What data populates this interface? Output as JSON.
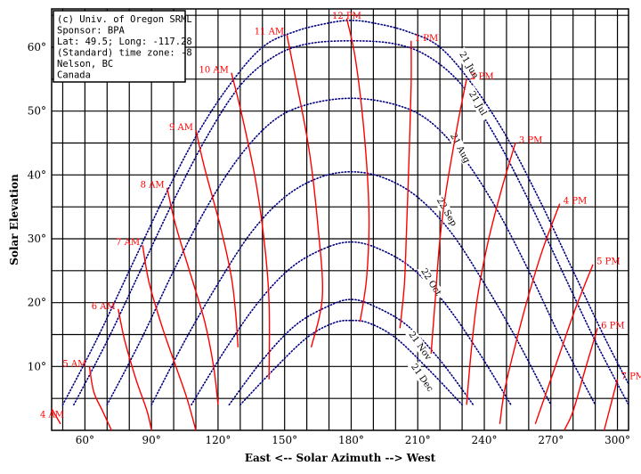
{
  "chart_data": {
    "type": "line",
    "title": "",
    "xlabel": "East <-- Solar Azimuth --> West",
    "ylabel": "Solar Elevation",
    "xlim": [
      45,
      305
    ],
    "ylim": [
      0,
      66
    ],
    "x_ticks": [
      60,
      90,
      120,
      150,
      180,
      210,
      240,
      270,
      300
    ],
    "x_tick_labels": [
      "60°",
      "90°",
      "120°",
      "150°",
      "180°",
      "210°",
      "240°",
      "270°",
      "300°"
    ],
    "y_ticks": [
      10,
      20,
      30,
      40,
      50,
      60
    ],
    "y_tick_labels": [
      "10°",
      "20°",
      "30°",
      "40°",
      "50°",
      "60°"
    ],
    "grid": true,
    "info_box": [
      "(c) Univ. of Oregon SRML",
      "Sponsor: BPA",
      "Lat: 49.5; Long: -117.28",
      "(Standard) time zone: -8",
      "Nelson, BC",
      "Canada"
    ],
    "colors": {
      "hour_lines": "#ff0000",
      "date_arcs": "#000080",
      "grid": "#000000",
      "axis_text": "#000000"
    },
    "date_arcs": [
      {
        "label": "21 Jun",
        "points": [
          [
            50,
            4
          ],
          [
            65,
            14
          ],
          [
            80,
            25
          ],
          [
            95,
            36
          ],
          [
            110,
            46
          ],
          [
            125,
            54
          ],
          [
            140,
            60
          ],
          [
            155,
            62.5
          ],
          [
            170,
            63.8
          ],
          [
            180,
            64.2
          ],
          [
            190,
            63.8
          ],
          [
            205,
            62.5
          ],
          [
            220,
            60
          ],
          [
            235,
            54
          ],
          [
            250,
            46
          ],
          [
            265,
            36
          ],
          [
            280,
            25
          ],
          [
            295,
            14
          ],
          [
            310,
            4
          ]
        ]
      },
      {
        "label": "21 Jul",
        "points": [
          [
            55,
            4
          ],
          [
            70,
            14
          ],
          [
            85,
            25
          ],
          [
            100,
            36
          ],
          [
            115,
            46
          ],
          [
            130,
            54
          ],
          [
            145,
            58.5
          ],
          [
            160,
            60.5
          ],
          [
            180,
            61
          ],
          [
            200,
            60.5
          ],
          [
            215,
            58.5
          ],
          [
            230,
            54
          ],
          [
            245,
            46
          ],
          [
            260,
            36
          ],
          [
            275,
            25
          ],
          [
            290,
            14
          ],
          [
            305,
            4
          ]
        ]
      },
      {
        "label": "21 Aug",
        "points": [
          [
            70,
            4
          ],
          [
            85,
            14
          ],
          [
            100,
            25
          ],
          [
            115,
            35
          ],
          [
            130,
            43
          ],
          [
            145,
            48.5
          ],
          [
            160,
            51
          ],
          [
            180,
            52
          ],
          [
            200,
            51
          ],
          [
            215,
            48.5
          ],
          [
            230,
            43
          ],
          [
            245,
            35
          ],
          [
            260,
            25
          ],
          [
            275,
            14
          ],
          [
            290,
            4
          ]
        ]
      },
      {
        "label": "22 Sep",
        "points": [
          [
            90,
            4
          ],
          [
            105,
            14
          ],
          [
            120,
            23
          ],
          [
            135,
            31
          ],
          [
            150,
            36.5
          ],
          [
            165,
            39.5
          ],
          [
            180,
            40.5
          ],
          [
            195,
            39.5
          ],
          [
            210,
            36.5
          ],
          [
            225,
            31
          ],
          [
            240,
            23
          ],
          [
            255,
            14
          ],
          [
            270,
            4
          ]
        ]
      },
      {
        "label": "22 Oct",
        "points": [
          [
            108,
            4
          ],
          [
            123,
            12.5
          ],
          [
            138,
            20
          ],
          [
            153,
            25.5
          ],
          [
            168,
            28.5
          ],
          [
            180,
            29.5
          ],
          [
            192,
            28.5
          ],
          [
            207,
            25.5
          ],
          [
            222,
            20
          ],
          [
            237,
            12.5
          ],
          [
            252,
            4
          ]
        ]
      },
      {
        "label": "21 Nov",
        "points": [
          [
            125,
            4
          ],
          [
            140,
            11
          ],
          [
            155,
            16.5
          ],
          [
            170,
            19.5
          ],
          [
            180,
            20.5
          ],
          [
            190,
            19.5
          ],
          [
            205,
            16.5
          ],
          [
            220,
            11
          ],
          [
            235,
            4
          ]
        ]
      },
      {
        "label": "21 Dec",
        "points": [
          [
            130,
            4
          ],
          [
            145,
            9.5
          ],
          [
            160,
            14.5
          ],
          [
            172,
            16.8
          ],
          [
            180,
            17.2
          ],
          [
            188,
            16.8
          ],
          [
            200,
            14.5
          ],
          [
            215,
            9.5
          ],
          [
            230,
            4
          ]
        ]
      }
    ],
    "hour_lines": [
      {
        "label": "4 AM",
        "points": [
          [
            44,
            4
          ],
          [
            49,
            1
          ]
        ]
      },
      {
        "label": "5 AM",
        "points": [
          [
            62,
            10
          ],
          [
            64,
            6
          ],
          [
            68,
            3
          ],
          [
            72,
            0
          ]
        ]
      },
      {
        "label": "6 AM",
        "points": [
          [
            75,
            19
          ],
          [
            78,
            14
          ],
          [
            83,
            8
          ],
          [
            88,
            3
          ],
          [
            90,
            0
          ]
        ]
      },
      {
        "label": "7 AM",
        "points": [
          [
            86,
            29
          ],
          [
            89,
            23
          ],
          [
            95,
            16
          ],
          [
            101,
            10
          ],
          [
            106,
            5
          ],
          [
            110,
            0
          ]
        ]
      },
      {
        "label": "8 AM",
        "points": [
          [
            97,
            38
          ],
          [
            101,
            32
          ],
          [
            108,
            24
          ],
          [
            114,
            17
          ],
          [
            118,
            10
          ],
          [
            120,
            4
          ]
        ]
      },
      {
        "label": "9 AM",
        "points": [
          [
            110,
            47
          ],
          [
            114,
            41
          ],
          [
            121,
            32
          ],
          [
            126,
            24
          ],
          [
            128,
            18
          ],
          [
            129,
            13
          ]
        ]
      },
      {
        "label": "10 AM",
        "points": [
          [
            126,
            56
          ],
          [
            131,
            49
          ],
          [
            137,
            39
          ],
          [
            141,
            29
          ],
          [
            143,
            20
          ],
          [
            143,
            8
          ]
        ]
      },
      {
        "label": "11 AM",
        "points": [
          [
            151,
            62
          ],
          [
            155,
            55
          ],
          [
            161,
            44
          ],
          [
            165,
            32
          ],
          [
            167,
            21
          ],
          [
            162,
            13
          ]
        ]
      },
      {
        "label": "12 PM",
        "points": [
          [
            178,
            64.5
          ],
          [
            182,
            58
          ],
          [
            186,
            46
          ],
          [
            188,
            34
          ],
          [
            187,
            24
          ],
          [
            184,
            17
          ]
        ]
      },
      {
        "label": "1 PM",
        "points": [
          [
            207,
            61
          ],
          [
            207,
            54
          ],
          [
            206,
            42
          ],
          [
            205,
            32
          ],
          [
            204,
            23
          ],
          [
            202,
            16
          ]
        ]
      },
      {
        "label": "2 PM",
        "points": [
          [
            232,
            55
          ],
          [
            228,
            48
          ],
          [
            223,
            38
          ],
          [
            220,
            30
          ],
          [
            218,
            21
          ],
          [
            216,
            12
          ]
        ]
      },
      {
        "label": "3 PM",
        "points": [
          [
            254,
            45
          ],
          [
            248,
            38
          ],
          [
            242,
            30
          ],
          [
            237,
            21
          ],
          [
            234,
            12
          ],
          [
            232,
            4
          ]
        ]
      },
      {
        "label": "4 PM",
        "points": [
          [
            274,
            35.5
          ],
          [
            266,
            28
          ],
          [
            259,
            20
          ],
          [
            253,
            12
          ],
          [
            249,
            6
          ],
          [
            247,
            1
          ]
        ]
      },
      {
        "label": "5 PM",
        "points": [
          [
            289,
            26
          ],
          [
            281,
            19
          ],
          [
            274,
            12
          ],
          [
            268,
            6
          ],
          [
            263,
            1
          ]
        ]
      },
      {
        "label": "6 PM",
        "points": [
          [
            291,
            16
          ],
          [
            285,
            9
          ],
          [
            280,
            3
          ],
          [
            276,
            0
          ]
        ]
      },
      {
        "label": "7 PM",
        "points": [
          [
            300,
            8
          ],
          [
            297,
            4
          ],
          [
            294,
            0
          ]
        ]
      }
    ]
  }
}
